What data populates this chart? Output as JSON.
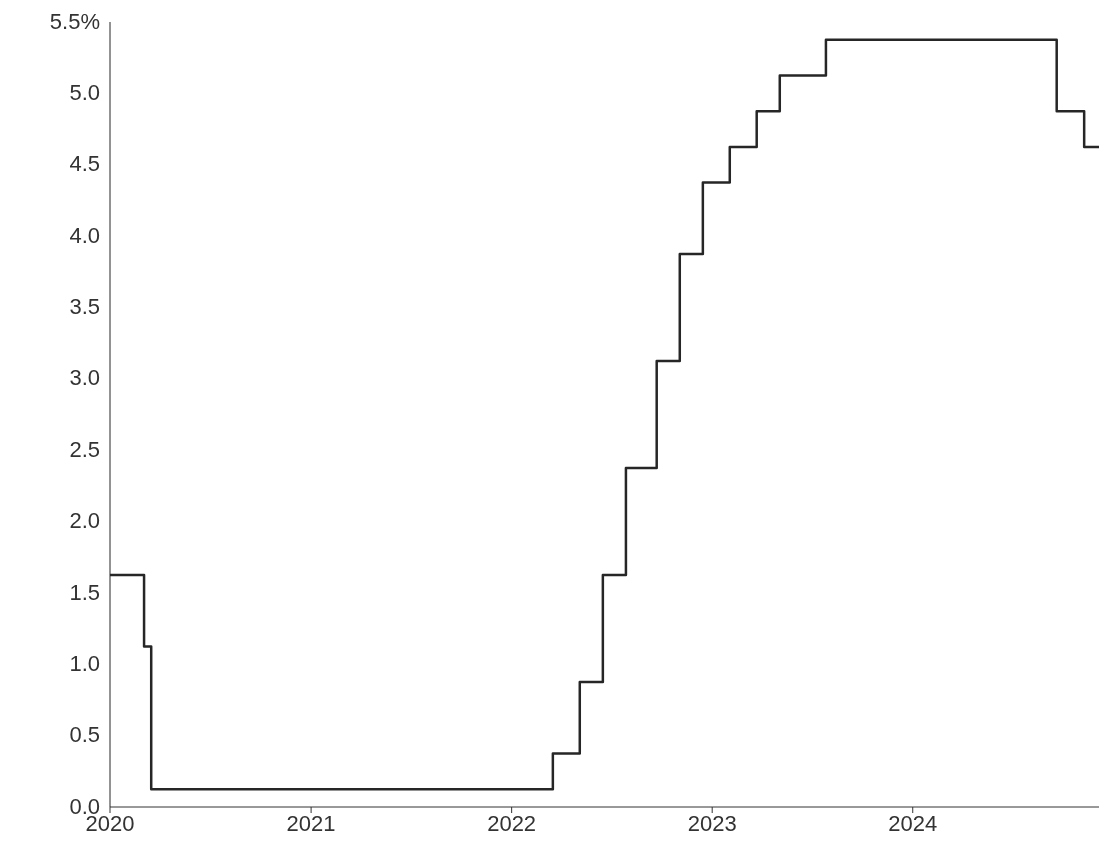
{
  "chart_data": {
    "type": "step",
    "x": [
      "2020-01-01",
      "2020-03-03",
      "2020-03-16",
      "2022-03-17",
      "2022-05-05",
      "2022-06-16",
      "2022-07-28",
      "2022-09-22",
      "2022-11-03",
      "2022-12-15",
      "2023-02-02",
      "2023-03-23",
      "2023-05-04",
      "2023-07-27",
      "2024-09-19",
      "2024-11-08",
      "2024-12-05"
    ],
    "values": [
      1.625,
      1.125,
      0.125,
      0.375,
      0.875,
      1.625,
      2.375,
      3.125,
      3.875,
      4.375,
      4.625,
      4.875,
      5.125,
      5.375,
      4.875,
      4.625,
      4.625
    ],
    "color": "#262626",
    "xlim": [
      "2020-01-01",
      "2024-12-05"
    ],
    "xticks": [
      {
        "value": "2020",
        "label": "2020"
      },
      {
        "value": "2021",
        "label": "2021"
      },
      {
        "value": "2022",
        "label": "2022"
      },
      {
        "value": "2023",
        "label": "2023"
      },
      {
        "value": "2024",
        "label": "2024"
      }
    ],
    "ylim": [
      0,
      5.5
    ],
    "yticks": [
      {
        "value": 0,
        "label": "0.0"
      },
      {
        "value": 0.5,
        "label": "0.5"
      },
      {
        "value": 1,
        "label": "1.0"
      },
      {
        "value": 1.5,
        "label": "1.5"
      },
      {
        "value": 2,
        "label": "2.0"
      },
      {
        "value": 2.5,
        "label": "2.5"
      },
      {
        "value": 3,
        "label": "3.0"
      },
      {
        "value": 3.5,
        "label": "3.5"
      },
      {
        "value": 4,
        "label": "4.0"
      },
      {
        "value": 4.5,
        "label": "4.5"
      },
      {
        "value": 5,
        "label": "5.0"
      },
      {
        "value": 5.5,
        "label": "5.5%"
      }
    ],
    "grid": false,
    "legend": false,
    "marker": "none",
    "line_style": "solid"
  }
}
